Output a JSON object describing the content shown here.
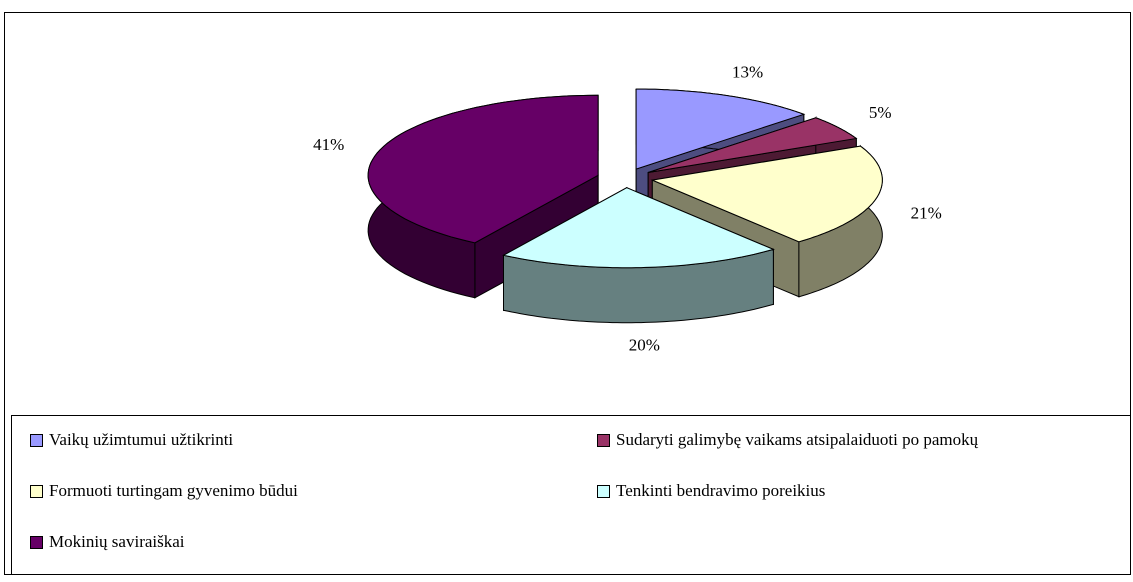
{
  "chart_data": {
    "type": "pie3d",
    "categories": [
      "Vaikų užimtumui užtikrinti",
      "Sudaryti galimybę vaikams atsipalaiduoti po pamokų",
      "Formuoti turtingam gyvenimo būdui",
      "Tenkinti bendravimo poreikius",
      "Mokinių saviraiškai"
    ],
    "values": [
      13,
      5,
      21,
      20,
      41
    ],
    "value_labels": [
      "13%",
      "5%",
      "21%",
      "20%",
      "41%"
    ],
    "colors": [
      "#9999ff",
      "#993366",
      "#ffffcc",
      "#ccffff",
      "#660066"
    ],
    "legend": "bottom"
  }
}
